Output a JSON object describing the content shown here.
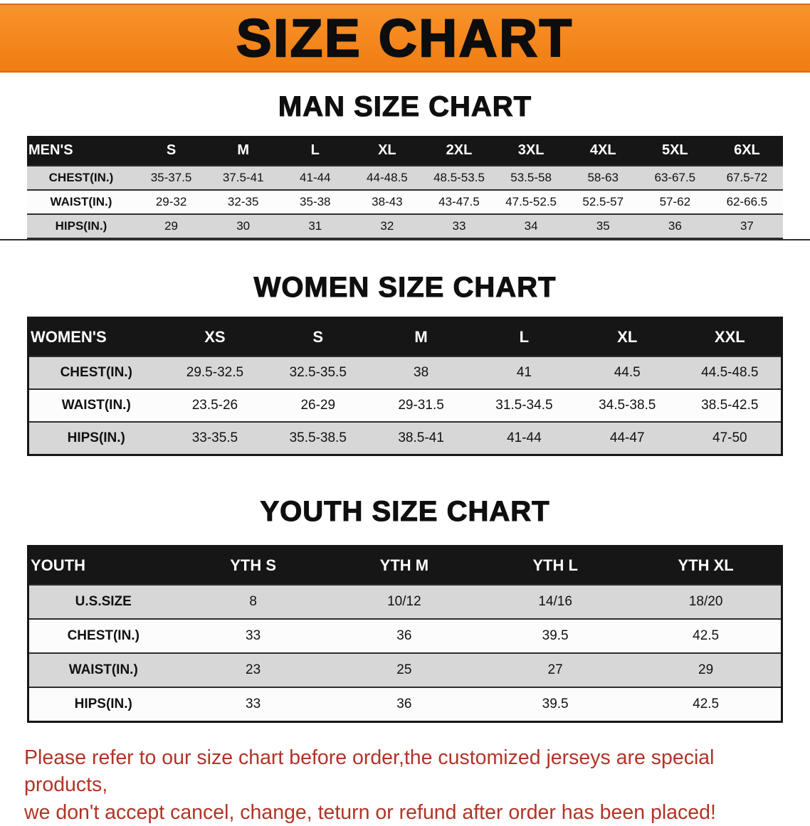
{
  "banner": {
    "title": "SIZE CHART",
    "background_color": "#f0821a"
  },
  "sections": {
    "men": {
      "heading": "MAN SIZE CHART",
      "table": {
        "corner": "MEN'S",
        "columns": [
          "S",
          "M",
          "L",
          "XL",
          "2XL",
          "3XL",
          "4XL",
          "5XL",
          "6XL"
        ],
        "rows": [
          {
            "label": "CHEST(IN.)",
            "values": [
              "35-37.5",
              "37.5-41",
              "41-44",
              "44-48.5",
              "48.5-53.5",
              "53.5-58",
              "58-63",
              "63-67.5",
              "67.5-72"
            ]
          },
          {
            "label": "WAIST(IN.)",
            "values": [
              "29-32",
              "32-35",
              "35-38",
              "38-43",
              "43-47.5",
              "47.5-52.5",
              "52.5-57",
              "57-62",
              "62-66.5"
            ]
          },
          {
            "label": "HIPS(IN.)",
            "values": [
              "29",
              "30",
              "31",
              "32",
              "33",
              "34",
              "35",
              "36",
              "37"
            ]
          }
        ]
      }
    },
    "women": {
      "heading": "WOMEN SIZE CHART",
      "table": {
        "corner": "WOMEN'S",
        "columns": [
          "XS",
          "S",
          "M",
          "L",
          "XL",
          "XXL"
        ],
        "rows": [
          {
            "label": "CHEST(IN.)",
            "values": [
              "29.5-32.5",
              "32.5-35.5",
              "38",
              "41",
              "44.5",
              "44.5-48.5"
            ]
          },
          {
            "label": "WAIST(IN.)",
            "values": [
              "23.5-26",
              "26-29",
              "29-31.5",
              "31.5-34.5",
              "34.5-38.5",
              "38.5-42.5"
            ]
          },
          {
            "label": "HIPS(IN.)",
            "values": [
              "33-35.5",
              "35.5-38.5",
              "38.5-41",
              "41-44",
              "44-47",
              "47-50"
            ]
          }
        ]
      }
    },
    "youth": {
      "heading": "YOUTH SIZE CHART",
      "table": {
        "corner": "YOUTH",
        "columns": [
          "YTH S",
          "YTH M",
          "YTH L",
          "YTH XL"
        ],
        "rows": [
          {
            "label": "U.S.SIZE",
            "values": [
              "8",
              "10/12",
              "14/16",
              "18/20"
            ]
          },
          {
            "label": "CHEST(IN.)",
            "values": [
              "33",
              "36",
              "39.5",
              "42.5"
            ]
          },
          {
            "label": "WAIST(IN.)",
            "values": [
              "23",
              "25",
              "27",
              "29"
            ]
          },
          {
            "label": "HIPS(IN.)",
            "values": [
              "33",
              "36",
              "39.5",
              "42.5"
            ]
          }
        ]
      }
    }
  },
  "notice": {
    "text_color": "#b23427",
    "lines": [
      "Please refer to our size chart before order,the customized jerseys are special products,",
      "we don't accept cancel, change, teturn or refund after order has been placed!"
    ]
  }
}
